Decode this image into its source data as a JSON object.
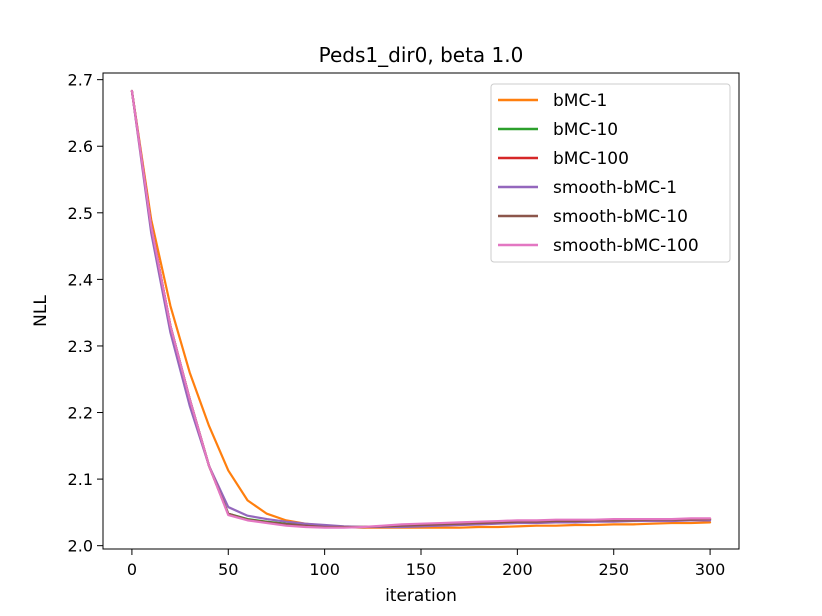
{
  "chart_data": {
    "type": "line",
    "title": "Peds1_dir0, beta 1.0",
    "xlabel": "iteration",
    "ylabel": "NLL",
    "xlim": [
      -15,
      315
    ],
    "ylim": [
      1.995,
      2.71
    ],
    "xticks": [
      0,
      50,
      100,
      150,
      200,
      250,
      300
    ],
    "yticks": [
      2.0,
      2.1,
      2.2,
      2.3,
      2.4,
      2.5,
      2.6,
      2.7
    ],
    "xtick_labels": [
      "0",
      "50",
      "100",
      "150",
      "200",
      "250",
      "300"
    ],
    "ytick_labels": [
      "2.0",
      "2.1",
      "2.2",
      "2.3",
      "2.4",
      "2.5",
      "2.6",
      "2.7"
    ],
    "grid": false,
    "legend_position": "top-right",
    "x": [
      0,
      10,
      20,
      30,
      40,
      50,
      60,
      70,
      80,
      90,
      100,
      110,
      120,
      130,
      140,
      150,
      160,
      170,
      180,
      190,
      200,
      210,
      220,
      230,
      240,
      250,
      260,
      270,
      280,
      290,
      300
    ],
    "series": [
      {
        "name": "bMC-1",
        "color": "#ff7f0e",
        "values": [
          2.683,
          2.49,
          2.36,
          2.26,
          2.18,
          2.113,
          2.068,
          2.048,
          2.038,
          2.033,
          2.03,
          2.028,
          2.027,
          2.027,
          2.027,
          2.027,
          2.027,
          2.027,
          2.028,
          2.028,
          2.029,
          2.03,
          2.03,
          2.031,
          2.031,
          2.032,
          2.032,
          2.033,
          2.034,
          2.034,
          2.035
        ]
      },
      {
        "name": "bMC-10",
        "color": "#2ca02c",
        "values": [
          2.683,
          2.48,
          2.33,
          2.22,
          2.12,
          2.048,
          2.04,
          2.036,
          2.033,
          2.031,
          2.029,
          2.028,
          2.028,
          2.029,
          2.03,
          2.031,
          2.032,
          2.033,
          2.034,
          2.035,
          2.035,
          2.036,
          2.036,
          2.037,
          2.037,
          2.038,
          2.038,
          2.038,
          2.039,
          2.039,
          2.039
        ]
      },
      {
        "name": "bMC-100",
        "color": "#d62728",
        "values": [
          2.683,
          2.48,
          2.33,
          2.22,
          2.12,
          2.047,
          2.039,
          2.035,
          2.032,
          2.03,
          2.028,
          2.028,
          2.028,
          2.029,
          2.03,
          2.031,
          2.032,
          2.033,
          2.034,
          2.035,
          2.036,
          2.036,
          2.037,
          2.037,
          2.038,
          2.038,
          2.039,
          2.039,
          2.039,
          2.04,
          2.04
        ]
      },
      {
        "name": "smooth-bMC-1",
        "color": "#9467bd",
        "values": [
          2.683,
          2.47,
          2.32,
          2.21,
          2.12,
          2.058,
          2.045,
          2.04,
          2.036,
          2.033,
          2.031,
          2.029,
          2.028,
          2.028,
          2.028,
          2.029,
          2.03,
          2.031,
          2.032,
          2.033,
          2.034,
          2.034,
          2.035,
          2.035,
          2.036,
          2.036,
          2.037,
          2.037,
          2.037,
          2.038,
          2.038
        ]
      },
      {
        "name": "smooth-bMC-10",
        "color": "#8c564b",
        "values": [
          2.683,
          2.48,
          2.33,
          2.22,
          2.12,
          2.048,
          2.039,
          2.035,
          2.032,
          2.03,
          2.028,
          2.028,
          2.028,
          2.029,
          2.03,
          2.031,
          2.032,
          2.033,
          2.034,
          2.035,
          2.036,
          2.036,
          2.037,
          2.037,
          2.038,
          2.038,
          2.038,
          2.039,
          2.039,
          2.039,
          2.04
        ]
      },
      {
        "name": "smooth-bMC-100",
        "color": "#e377c2",
        "values": [
          2.683,
          2.48,
          2.33,
          2.22,
          2.12,
          2.046,
          2.038,
          2.034,
          2.03,
          2.028,
          2.027,
          2.027,
          2.028,
          2.03,
          2.032,
          2.033,
          2.034,
          2.035,
          2.036,
          2.037,
          2.038,
          2.038,
          2.039,
          2.039,
          2.039,
          2.04,
          2.04,
          2.04,
          2.04,
          2.041,
          2.041
        ]
      }
    ]
  }
}
